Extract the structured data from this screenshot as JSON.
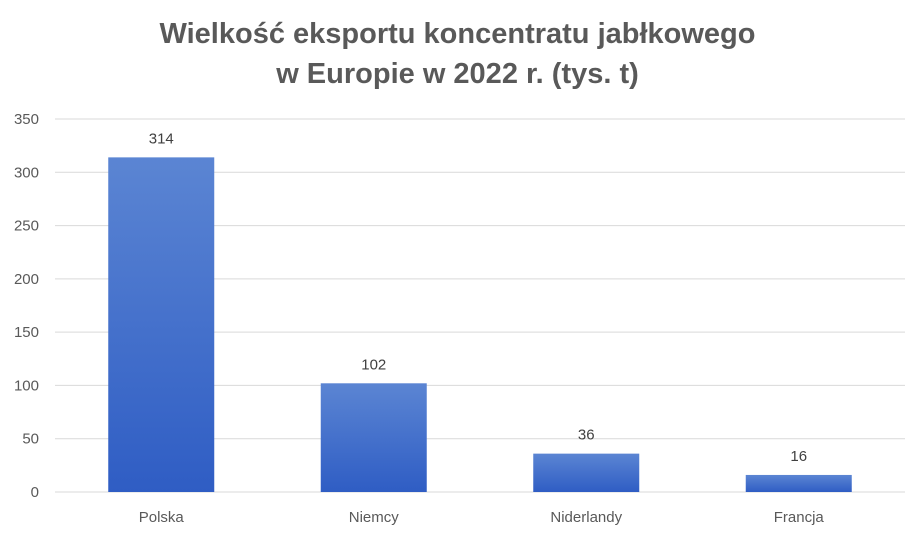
{
  "chart_data": {
    "type": "bar",
    "title_line1": "Wielkość eksportu koncentratu jabłkowego",
    "title_line2": "w Europie w 2022 r. (tys. t)",
    "xlabel": "",
    "ylabel": "",
    "categories": [
      "Polska",
      "Niemcy",
      "Niderlandy",
      "Francja"
    ],
    "values": [
      314,
      102,
      36,
      16
    ],
    "ylim": [
      0,
      350
    ],
    "yticks": [
      0,
      50,
      100,
      150,
      200,
      250,
      300,
      350
    ],
    "grid": true,
    "legend": "none",
    "data_labels": true,
    "colors": {
      "bar_top": "#5B85D3",
      "bar_bottom": "#2F5DC4",
      "grid": "#D9D9D9",
      "axis_text": "#595959"
    }
  }
}
